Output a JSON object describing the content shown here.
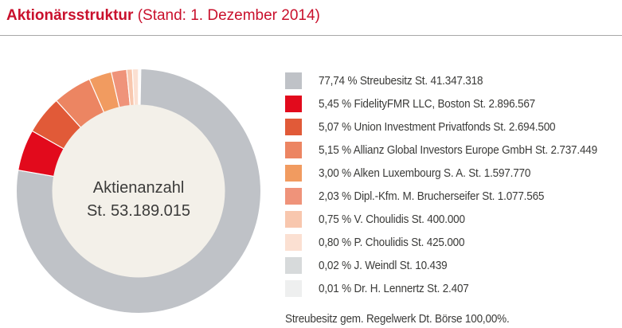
{
  "page": {
    "title_bold": "Aktionärsstruktur",
    "title_rest": " (Stand: 1. Dezember 2014)",
    "title_color": "#c9102c"
  },
  "chart_data": {
    "type": "pie",
    "donut": true,
    "start_angle_deg": 0,
    "direction": "clockwise",
    "center_label_line1": "Aktienanzahl",
    "center_label_line2": "St. 53.189.015",
    "center_bg": "#f3f0e9",
    "separator_color": "#ffffff",
    "items": [
      {
        "value": 77.74,
        "percent_label": "77,74 %",
        "name": "Streubesitz",
        "shares_label": "St. 41.347.318",
        "color": "#bfc2c7"
      },
      {
        "value": 5.45,
        "percent_label": "5,45 %",
        "name": "FidelityFMR LLC, Boston",
        "shares_label": "St. 2.896.567",
        "color": "#e20a1c"
      },
      {
        "value": 5.07,
        "percent_label": "5,07 %",
        "name": "Union Investment Privatfonds",
        "shares_label": "St. 2.694.500",
        "color": "#e15a38"
      },
      {
        "value": 5.15,
        "percent_label": "5,15 %",
        "name": "Allianz Global Investors Europe GmbH",
        "shares_label": "St. 2.737.449",
        "color": "#ec8562"
      },
      {
        "value": 3.0,
        "percent_label": "3,00 %",
        "name": "Alken Luxembourg S. A.",
        "shares_label": "St. 1.597.770",
        "color": "#f19b60"
      },
      {
        "value": 2.03,
        "percent_label": "2,03 %",
        "name": "Dipl.-Kfm. M. Brucherseifer",
        "shares_label": "St. 1.077.565",
        "color": "#ef937a"
      },
      {
        "value": 0.75,
        "percent_label": "0,75 %",
        "name": "V. Choulidis",
        "shares_label": "St. 400.000",
        "color": "#f8c7ae"
      },
      {
        "value": 0.8,
        "percent_label": "0,80 %",
        "name": "P. Choulidis",
        "shares_label": "St. 425.000",
        "color": "#fbe0d2"
      },
      {
        "value": 0.02,
        "percent_label": "0,02 %",
        "name": "J. Weindl",
        "shares_label": "St. 10.439",
        "color": "#d7dadb"
      },
      {
        "value": 0.01,
        "percent_label": "0,01 %",
        "name": "Dr. H. Lennertz",
        "shares_label": "St. 2.407",
        "color": "#eeefef"
      }
    ],
    "footnote": "Streubesitz gem. Regelwerk Dt. Börse 100,00%."
  }
}
